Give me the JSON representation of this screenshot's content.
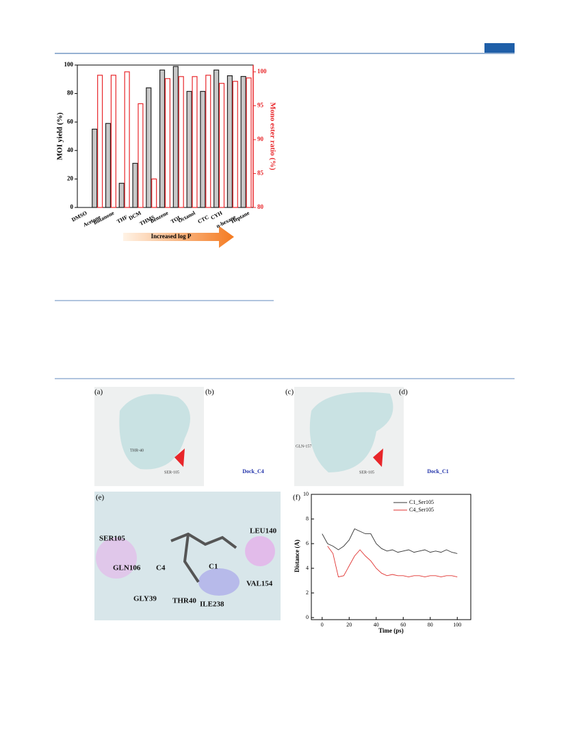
{
  "chart_data": [
    {
      "type": "bar",
      "categories": [
        "DMSO",
        "Acetone",
        "Butanone",
        "THF",
        "DCM",
        "THMS",
        "Benzene",
        "TOL",
        "Octanol",
        "CTC",
        "CYH",
        "n-hexane",
        "Heptane"
      ],
      "series": [
        {
          "name": "MOI yield",
          "color": "#c8c8c8",
          "values": [
            null,
            55,
            59,
            17,
            31,
            84,
            96.5,
            99,
            81.5,
            81.5,
            96.5,
            92.5,
            92
          ]
        },
        {
          "name": "Mono ester ratio",
          "color": "#e8262a",
          "axis": "y2",
          "values": [
            null,
            99.5,
            99.5,
            100,
            95.3,
            84.2,
            99,
            99.3,
            99.3,
            99.5,
            98.3,
            98.6,
            99.1
          ]
        }
      ],
      "ylabel": "MOI yield (%)",
      "y2label": "Mono ester ratio (%)",
      "ylim": [
        0,
        100
      ],
      "yticks": [
        0,
        20,
        40,
        60,
        80,
        100
      ],
      "y2lim": [
        80,
        101
      ],
      "y2ticks": [
        80,
        85,
        90,
        95,
        100
      ],
      "annotation": "Increased log P"
    },
    {
      "type": "line",
      "panel_label": "(f)",
      "x": [
        0,
        4,
        8,
        12,
        16,
        20,
        24,
        28,
        32,
        36,
        40,
        44,
        48,
        52,
        56,
        60,
        64,
        68,
        72,
        76,
        80,
        84,
        88,
        92,
        96,
        100
      ],
      "series": [
        {
          "name": "C1_Ser105",
          "color": "#333333",
          "values": [
            6.8,
            6.0,
            5.8,
            5.5,
            5.8,
            6.3,
            7.2,
            7.0,
            6.8,
            6.8,
            6.0,
            5.6,
            5.4,
            5.5,
            5.3,
            5.4,
            5.5,
            5.3,
            5.4,
            5.5,
            5.3,
            5.4,
            5.3,
            5.5,
            5.3,
            5.2
          ]
        },
        {
          "name": "C4_Ser105",
          "color": "#e0312f",
          "values": [
            null,
            5.8,
            5.2,
            3.3,
            3.4,
            4.2,
            5.0,
            5.5,
            5.0,
            4.6,
            4.0,
            3.6,
            3.4,
            3.5,
            3.4,
            3.4,
            3.3,
            3.4,
            3.4,
            3.3,
            3.4,
            3.4,
            3.3,
            3.4,
            3.4,
            3.3
          ]
        }
      ],
      "xlabel": "Time (ps)",
      "ylabel": "Distance (A)",
      "xlim": [
        -8,
        110
      ],
      "xticks": [
        0,
        20,
        40,
        60,
        80,
        100
      ],
      "ylim": [
        0,
        10
      ],
      "yticks": [
        0,
        2,
        4,
        6,
        8,
        10
      ]
    }
  ],
  "panels": [
    {
      "label": "(a)",
      "annotations": [
        "THR-40",
        "SER-105"
      ]
    },
    {
      "label": "(b)",
      "caption": "Dock_C4"
    },
    {
      "label": "(c)",
      "annotations": [
        "GLN-157",
        "SER-105"
      ]
    },
    {
      "label": "(d)",
      "caption": "Dock_C1"
    },
    {
      "label": "(e)",
      "annotations": [
        "SER105",
        "GLN106",
        "C4",
        "C1",
        "LEU140",
        "VAL154",
        "GLY39",
        "THR40",
        "ILE238"
      ]
    }
  ]
}
